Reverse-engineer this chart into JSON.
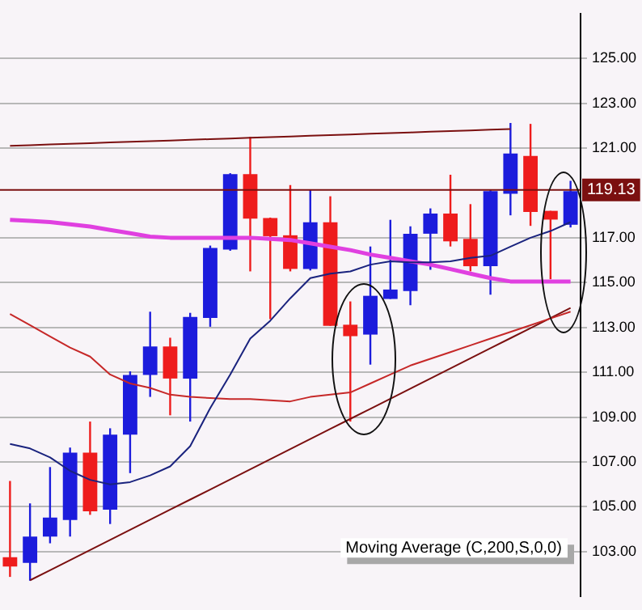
{
  "chart_data": {
    "type": "candlestick",
    "categories": [
      null,
      null,
      null,
      null,
      null,
      null,
      null,
      null,
      null,
      null,
      null,
      null,
      null,
      null,
      null,
      null,
      null,
      null,
      null,
      null,
      null,
      null,
      null,
      null,
      null,
      null,
      null,
      null,
      null
    ],
    "ohlc": [
      [
        102.75,
        106.15,
        101.87,
        102.33
      ],
      [
        102.5,
        105.15,
        101.7,
        103.67
      ],
      [
        103.67,
        106.77,
        103.37,
        104.52
      ],
      [
        104.41,
        107.64,
        103.67,
        107.41
      ],
      [
        107.41,
        108.8,
        104.64,
        104.8
      ],
      [
        104.87,
        108.5,
        104.23,
        108.22
      ],
      [
        108.22,
        111.04,
        106.5,
        110.88
      ],
      [
        110.88,
        113.7,
        109.9,
        112.15
      ],
      [
        112.15,
        112.54,
        109.08,
        110.72
      ],
      [
        110.72,
        113.65,
        108.8,
        113.47
      ],
      [
        113.42,
        116.65,
        113.03,
        116.54
      ],
      [
        116.47,
        119.88,
        116.42,
        119.84
      ],
      [
        119.84,
        121.5,
        115.5,
        117.85
      ],
      [
        117.88,
        117.9,
        113.37,
        117.07
      ],
      [
        117.11,
        119.35,
        115.5,
        115.61
      ],
      [
        115.61,
        119.15,
        115.54,
        117.69
      ],
      [
        117.69,
        118.85,
        113.07,
        113.07
      ],
      [
        113.12,
        114.16,
        108.8,
        112.61
      ],
      [
        112.68,
        116.61,
        111.34,
        114.41
      ],
      [
        114.27,
        117.8,
        114.27,
        114.69
      ],
      [
        114.62,
        117.51,
        113.99,
        117.18
      ],
      [
        117.18,
        118.31,
        115.57,
        118.08
      ],
      [
        118.08,
        119.81,
        116.61,
        116.84
      ],
      [
        116.95,
        118.5,
        115.5,
        115.73
      ],
      [
        115.73,
        119.12,
        114.46,
        119.08
      ],
      [
        118.96,
        122.12,
        118.0,
        120.76
      ],
      [
        120.65,
        122.08,
        117.53,
        118.15
      ],
      [
        118.2,
        118.2,
        115.15,
        117.81
      ],
      [
        117.58,
        119.54,
        117.46,
        119.08
      ]
    ],
    "colors": [
      "#ee1c1c",
      "#1c1cdc",
      "#1c1cdc",
      "#1c1cdc",
      "#ee1c1c",
      "#1c1cdc",
      "#1c1cdc",
      "#1c1cdc",
      "#ee1c1c",
      "#1c1cdc",
      "#1c1cdc",
      "#1c1cdc",
      "#ee1c1c",
      "#ee1c1c",
      "#ee1c1c",
      "#1c1cdc",
      "#ee1c1c",
      "#ee1c1c",
      "#1c1cdc",
      "#1c1cdc",
      "#1c1cdc",
      "#1c1cdc",
      "#ee1c1c",
      "#ee1c1c",
      "#1c1cdc",
      "#1c1cdc",
      "#ee1c1c",
      "#ee1c1c",
      "#1c1cdc"
    ],
    "series": [
      {
        "type": "line",
        "color": "#1a237e",
        "values": [
          107.8,
          107.6,
          107.2,
          106.6,
          106.2,
          106.0,
          106.1,
          106.4,
          106.8,
          107.7,
          109.4,
          110.9,
          112.5,
          113.3,
          114.3,
          115.2,
          115.4,
          115.5,
          115.8,
          115.95,
          115.9,
          115.9,
          115.95,
          116.1,
          116.2,
          116.6,
          117.0,
          117.3,
          117.7
        ]
      },
      {
        "type": "line",
        "color": "#c62828",
        "values": [
          113.6,
          113.1,
          112.6,
          112.1,
          111.7,
          110.9,
          110.5,
          110.3,
          110.0,
          109.9,
          109.85,
          109.8,
          109.8,
          109.75,
          109.7,
          109.9,
          110.0,
          110.1,
          110.5,
          110.9,
          111.3,
          111.6,
          111.9,
          112.2,
          112.5,
          112.8,
          113.1,
          113.4,
          113.7
        ]
      },
      {
        "type": "line",
        "color": "#e040e0",
        "values": [
          117.8,
          117.75,
          117.7,
          117.6,
          117.5,
          117.35,
          117.2,
          117.05,
          117.0,
          117.0,
          117.0,
          117.0,
          117.0,
          116.95,
          116.9,
          116.75,
          116.6,
          116.45,
          116.25,
          116.1,
          115.95,
          115.8,
          115.6,
          115.4,
          115.2,
          115.05,
          115.05,
          115.05,
          115.05
        ]
      },
      {
        "type": "line",
        "color": "#7b1010",
        "values": [
          121.1,
          121.13,
          121.16,
          121.19,
          121.22,
          121.25,
          121.28,
          121.31,
          121.34,
          121.37,
          121.4,
          121.43,
          121.46,
          121.49,
          121.52,
          121.55,
          121.58,
          121.61,
          121.64,
          121.67,
          121.7,
          121.73,
          121.76,
          121.79,
          121.82,
          121.85,
          null,
          null,
          null
        ]
      },
      {
        "type": "line",
        "color": "#7b1010",
        "values": [
          null,
          101.72,
          102.17,
          102.62,
          103.07,
          103.52,
          103.97,
          104.42,
          104.87,
          105.32,
          105.77,
          106.22,
          106.67,
          107.12,
          107.57,
          108.02,
          108.47,
          108.92,
          109.37,
          109.82,
          110.27,
          110.72,
          111.17,
          111.62,
          112.07,
          112.52,
          112.97,
          113.42,
          113.87
        ]
      }
    ],
    "ref_lines": [
      {
        "axis": "y",
        "value": 119.13,
        "label": "119.13",
        "color": "#7b1010"
      }
    ],
    "annotations": [
      "Moving Average (C,200,S,0,0)"
    ],
    "ylim": [
      101,
      127
    ],
    "yticks": [
      {
        "value": 103,
        "label": "103.00"
      },
      {
        "value": 105,
        "label": "105.00"
      },
      {
        "value": 107,
        "label": "107.00"
      },
      {
        "value": 109,
        "label": "109.00"
      },
      {
        "value": 111,
        "label": "111.00"
      },
      {
        "value": 113,
        "label": "113.00"
      },
      {
        "value": 115,
        "label": "115.00"
      },
      {
        "value": 117,
        "label": "117.00"
      },
      {
        "value": 121,
        "label": "121.00"
      },
      {
        "value": 123,
        "label": "123.00"
      },
      {
        "value": 125,
        "label": "125.00"
      }
    ],
    "tick_labels": "y",
    "grid": "y",
    "legend": false
  }
}
